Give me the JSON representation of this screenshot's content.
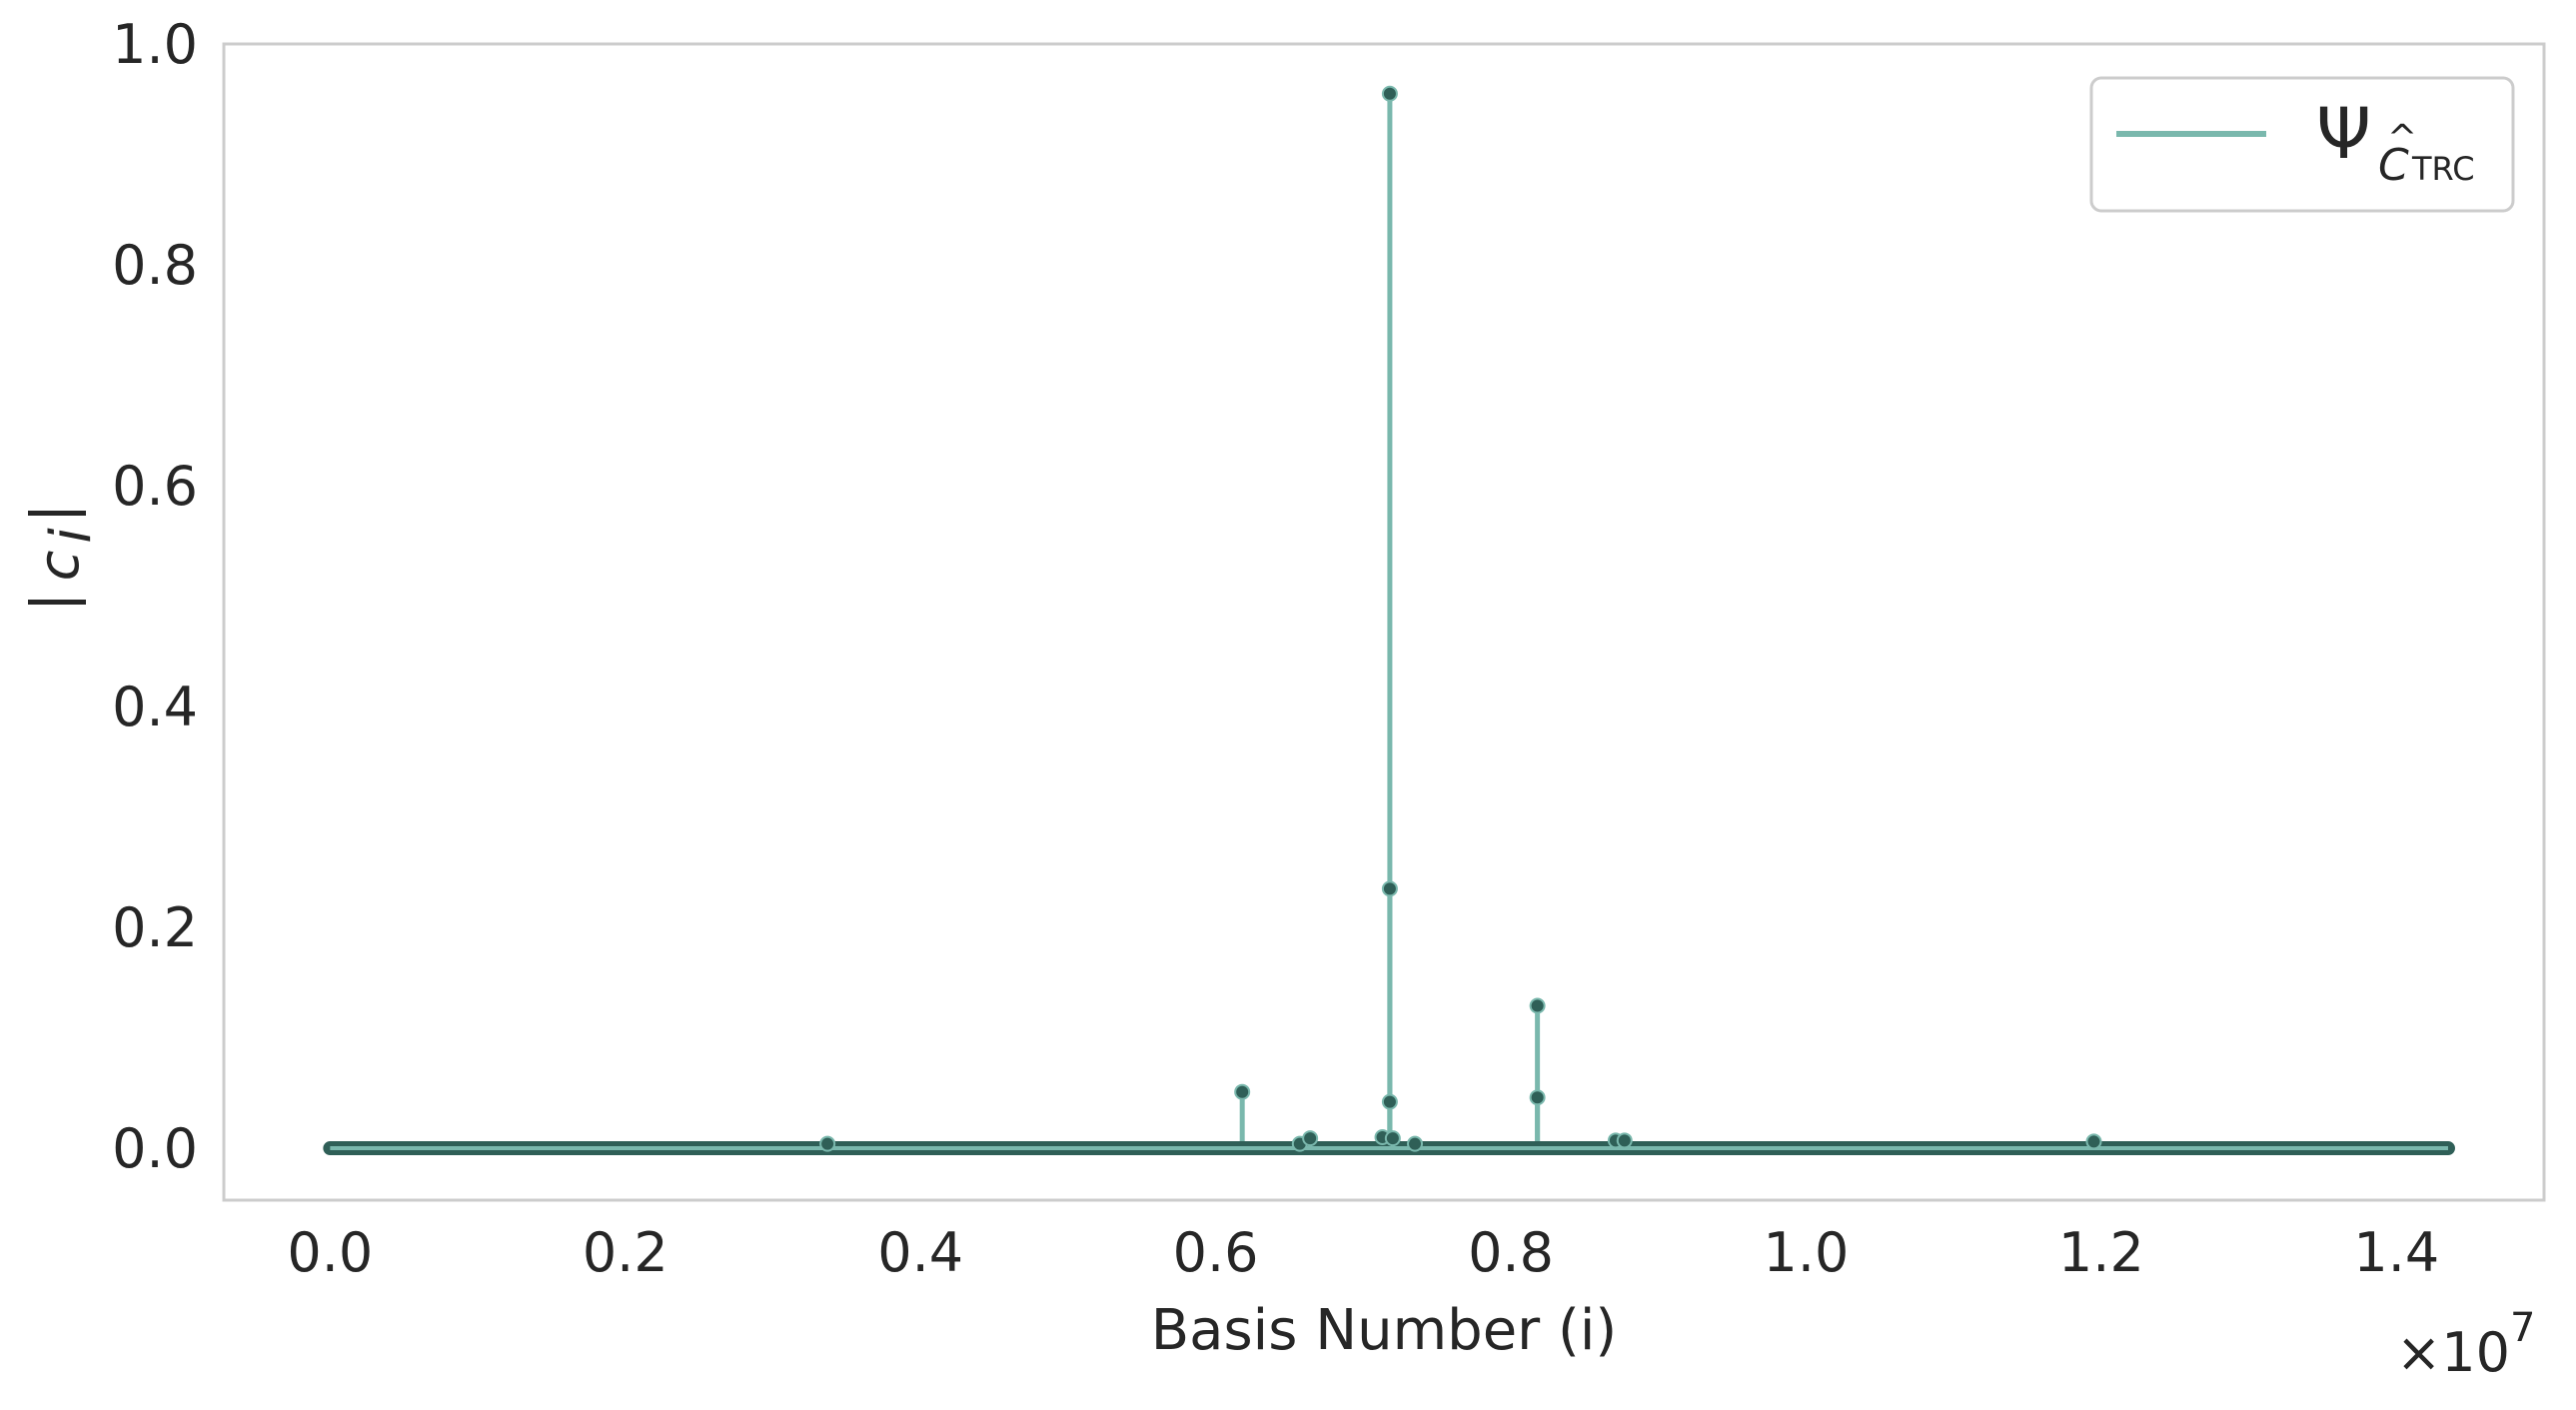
{
  "chart_data": {
    "type": "line",
    "xlabel": "Basis Number (i)",
    "ylabel_symbol": "c",
    "ylabel_subscript": "i",
    "x_scale_label": "×10",
    "x_scale_exponent": "7",
    "xlim": [
      -0.072,
      1.5
    ],
    "ylim": [
      -0.047,
      1.0
    ],
    "x_ticks": [
      0.0,
      0.2,
      0.4,
      0.6,
      0.8,
      1.0,
      1.2,
      1.4
    ],
    "x_tick_labels": [
      "0.0",
      "0.2",
      "0.4",
      "0.6",
      "0.8",
      "1.0",
      "1.2",
      "1.4"
    ],
    "y_ticks": [
      0.0,
      0.2,
      0.4,
      0.6,
      0.8,
      1.0
    ],
    "y_tick_labels": [
      "0.0",
      "0.2",
      "0.4",
      "0.6",
      "0.8",
      "1.0"
    ],
    "grid": false,
    "legend_position": "top-right",
    "legend": {
      "symbol": "Ψ",
      "sub_letter": "C",
      "sub_hat": "^",
      "sub_text": "TRC"
    },
    "x_range_data": [
      0.0,
      1.435
    ],
    "colors": {
      "line": "#7ab8ad",
      "marker": "#2f5f57",
      "frame": "#cccccc"
    },
    "series": [
      {
        "points": [
          {
            "x": 0.337,
            "y": 0.004
          },
          {
            "x": 0.618,
            "y": 0.051
          },
          {
            "x": 0.657,
            "y": 0.004
          },
          {
            "x": 0.664,
            "y": 0.009
          },
          {
            "x": 0.713,
            "y": 0.01
          },
          {
            "x": 0.718,
            "y": 0.955
          },
          {
            "x": 0.718,
            "y": 0.235
          },
          {
            "x": 0.718,
            "y": 0.042
          },
          {
            "x": 0.72,
            "y": 0.009
          },
          {
            "x": 0.735,
            "y": 0.004
          },
          {
            "x": 0.818,
            "y": 0.129
          },
          {
            "x": 0.818,
            "y": 0.046
          },
          {
            "x": 0.871,
            "y": 0.007
          },
          {
            "x": 0.877,
            "y": 0.007
          },
          {
            "x": 1.195,
            "y": 0.006
          }
        ]
      }
    ]
  }
}
